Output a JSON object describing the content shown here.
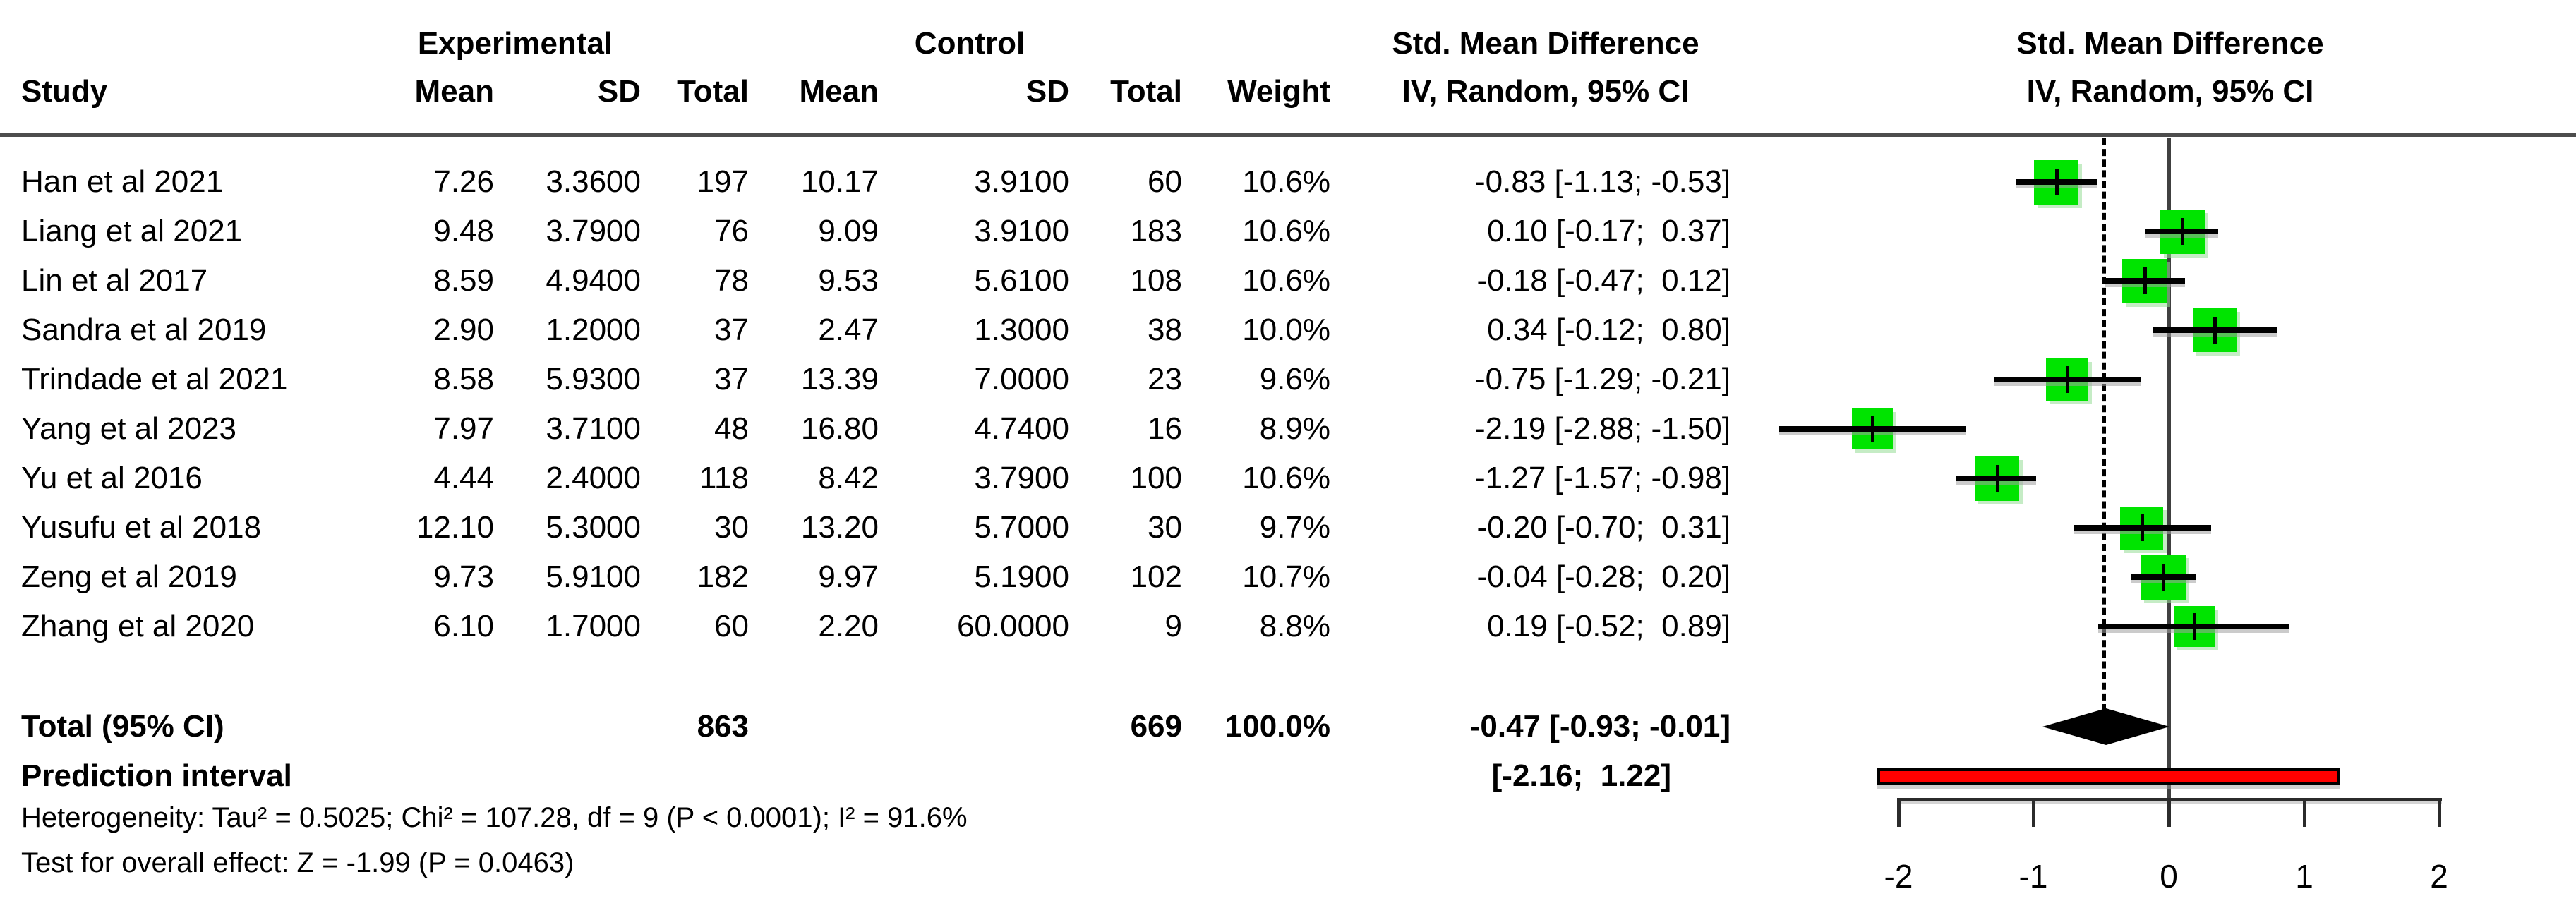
{
  "header": {
    "study": "Study",
    "group_experimental": "Experimental",
    "group_control": "Control",
    "exp_mean": "Mean",
    "exp_sd": "SD",
    "exp_total": "Total",
    "ctrl_mean": "Mean",
    "ctrl_sd": "SD",
    "ctrl_total": "Total",
    "weight": "Weight",
    "smd_col_title": "Std. Mean Difference",
    "smd_col_subtitle": "IV, Random, 95% CI",
    "plot_title": "Std. Mean Difference",
    "plot_subtitle": "IV, Random, 95% CI"
  },
  "footer": {
    "heterogeneity": "Heterogeneity: Tau² = 0.5025; Chi² = 107.28, df = 9 (P < 0.0001); I² = 91.6%",
    "overall_test": "Test for overall effect: Z = -1.99 (P = 0.0463)"
  },
  "colors": {
    "square_green": "#00e400",
    "prediction_red": "#ff0000",
    "diamond_black": "#000000"
  },
  "chart_data": {
    "type": "forest",
    "effect_measure": "Std. Mean Difference (IV, Random, 95% CI)",
    "axis": {
      "ticks": [
        -2,
        -1,
        0,
        1,
        2
      ],
      "xlim": [
        -2.88,
        2
      ],
      "null_line": 0,
      "overall_line": -0.47
    },
    "studies": [
      {
        "name": "Han et al 2021",
        "exp_mean": "7.26",
        "exp_sd": "3.3600",
        "exp_total": "197",
        "ctrl_mean": "10.17",
        "ctrl_sd": "3.9100",
        "ctrl_total": "60",
        "weight": "10.6%",
        "smd": "-0.83 [-1.13; -0.53]",
        "est": -0.83,
        "lo": -1.13,
        "hi": -0.53,
        "w": 10.6
      },
      {
        "name": "Liang et al 2021",
        "exp_mean": "9.48",
        "exp_sd": "3.7900",
        "exp_total": "76",
        "ctrl_mean": "9.09",
        "ctrl_sd": "3.9100",
        "ctrl_total": "183",
        "weight": "10.6%",
        "smd": "0.10 [-0.17;  0.37]",
        "est": 0.1,
        "lo": -0.17,
        "hi": 0.37,
        "w": 10.6
      },
      {
        "name": "Lin et al 2017",
        "exp_mean": "8.59",
        "exp_sd": "4.9400",
        "exp_total": "78",
        "ctrl_mean": "9.53",
        "ctrl_sd": "5.6100",
        "ctrl_total": "108",
        "weight": "10.6%",
        "smd": "-0.18 [-0.47;  0.12]",
        "est": -0.18,
        "lo": -0.47,
        "hi": 0.12,
        "w": 10.6
      },
      {
        "name": "Sandra et al 2019",
        "exp_mean": "2.90",
        "exp_sd": "1.2000",
        "exp_total": "37",
        "ctrl_mean": "2.47",
        "ctrl_sd": "1.3000",
        "ctrl_total": "38",
        "weight": "10.0%",
        "smd": "0.34 [-0.12;  0.80]",
        "est": 0.34,
        "lo": -0.12,
        "hi": 0.8,
        "w": 10.0
      },
      {
        "name": "Trindade et al 2021",
        "exp_mean": "8.58",
        "exp_sd": "5.9300",
        "exp_total": "37",
        "ctrl_mean": "13.39",
        "ctrl_sd": "7.0000",
        "ctrl_total": "23",
        "weight": "9.6%",
        "smd": "-0.75 [-1.29; -0.21]",
        "est": -0.75,
        "lo": -1.29,
        "hi": -0.21,
        "w": 9.6
      },
      {
        "name": "Yang et al 2023",
        "exp_mean": "7.97",
        "exp_sd": "3.7100",
        "exp_total": "48",
        "ctrl_mean": "16.80",
        "ctrl_sd": "4.7400",
        "ctrl_total": "16",
        "weight": "8.9%",
        "smd": "-2.19 [-2.88; -1.50]",
        "est": -2.19,
        "lo": -2.88,
        "hi": -1.5,
        "w": 8.9
      },
      {
        "name": "Yu et al 2016",
        "exp_mean": "4.44",
        "exp_sd": "2.4000",
        "exp_total": "118",
        "ctrl_mean": "8.42",
        "ctrl_sd": "3.7900",
        "ctrl_total": "100",
        "weight": "10.6%",
        "smd": "-1.27 [-1.57; -0.98]",
        "est": -1.27,
        "lo": -1.57,
        "hi": -0.98,
        "w": 10.6
      },
      {
        "name": "Yusufu et al 2018",
        "exp_mean": "12.10",
        "exp_sd": "5.3000",
        "exp_total": "30",
        "ctrl_mean": "13.20",
        "ctrl_sd": "5.7000",
        "ctrl_total": "30",
        "weight": "9.7%",
        "smd": "-0.20 [-0.70;  0.31]",
        "est": -0.2,
        "lo": -0.7,
        "hi": 0.31,
        "w": 9.7
      },
      {
        "name": "Zeng et al 2019",
        "exp_mean": "9.73",
        "exp_sd": "5.9100",
        "exp_total": "182",
        "ctrl_mean": "9.97",
        "ctrl_sd": "5.1900",
        "ctrl_total": "102",
        "weight": "10.7%",
        "smd": "-0.04 [-0.28;  0.20]",
        "est": -0.04,
        "lo": -0.28,
        "hi": 0.2,
        "w": 10.7
      },
      {
        "name": "Zhang et al 2020",
        "exp_mean": "6.10",
        "exp_sd": "1.7000",
        "exp_total": "60",
        "ctrl_mean": "2.20",
        "ctrl_sd": "60.0000",
        "ctrl_total": "9",
        "weight": "8.8%",
        "smd": "0.19 [-0.52;  0.89]",
        "est": 0.19,
        "lo": -0.52,
        "hi": 0.89,
        "w": 8.8
      }
    ],
    "total": {
      "label": "Total (95% CI)",
      "exp_total": "863",
      "ctrl_total": "669",
      "weight": "100.0%",
      "smd": "-0.47 [-0.93; -0.01]",
      "est": -0.47,
      "lo": -0.93,
      "hi": -0.01
    },
    "prediction": {
      "label": "Prediction interval",
      "smd": "[-2.16;  1.22]",
      "lo": -2.16,
      "hi": 1.22
    },
    "heterogeneity": "Heterogeneity: Tau² = 0.5025; Chi² = 107.28, df = 9 (P < 0.0001); I² = 91.6%",
    "overall_test": "Test for overall effect: Z = -1.99 (P = 0.0463)"
  }
}
